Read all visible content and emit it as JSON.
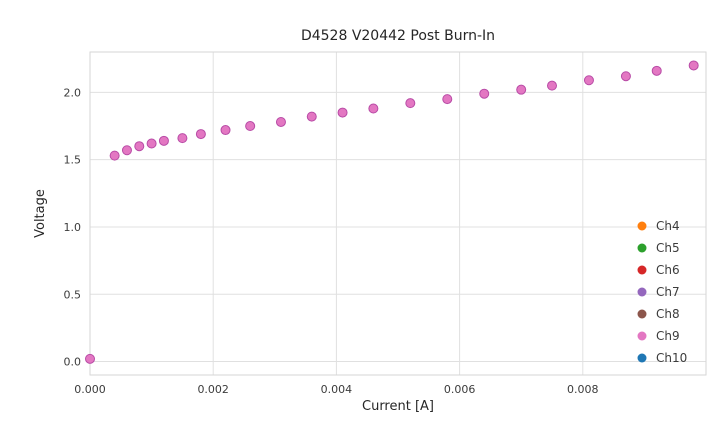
{
  "chart_data": {
    "type": "scatter",
    "title": "D4528 V20442 Post Burn-In",
    "xlabel": "Current [A]",
    "ylabel": "Voltage",
    "xlim": [
      0,
      0.01
    ],
    "ylim": [
      -0.1,
      2.3
    ],
    "x_ticks": [
      0,
      0.002,
      0.004,
      0.006,
      0.008
    ],
    "x_tick_labels": [
      "0.000",
      "0.002",
      "0.004",
      "0.006",
      "0.008"
    ],
    "y_ticks": [
      0,
      0.5,
      1.0,
      1.5,
      2.0
    ],
    "y_tick_labels": [
      "0.0",
      "0.5",
      "1.0",
      "1.5",
      "2.0"
    ],
    "grid": true,
    "legend_position": "lower right",
    "legend": [
      {
        "label": "Ch4",
        "color": "#ff7f0e"
      },
      {
        "label": "Ch5",
        "color": "#2ca02c"
      },
      {
        "label": "Ch6",
        "color": "#d62728"
      },
      {
        "label": "Ch7",
        "color": "#9467bd"
      },
      {
        "label": "Ch8",
        "color": "#8c564b"
      },
      {
        "label": "Ch9",
        "color": "#e377c2"
      },
      {
        "label": "Ch10",
        "color": "#1f77b4"
      }
    ],
    "marker_edge_color": "#b84ba6",
    "series": [
      {
        "name": "Ch9",
        "color": "#e377c2",
        "x": [
          0.0,
          0.0004,
          0.0006,
          0.0008,
          0.001,
          0.0012,
          0.0015,
          0.0018,
          0.0022,
          0.0026,
          0.0031,
          0.0036,
          0.0041,
          0.0046,
          0.0052,
          0.0058,
          0.0064,
          0.007,
          0.0075,
          0.0081,
          0.0087,
          0.0092,
          0.0098
        ],
        "y": [
          0.02,
          1.53,
          1.57,
          1.6,
          1.62,
          1.64,
          1.66,
          1.69,
          1.72,
          1.75,
          1.78,
          1.82,
          1.85,
          1.88,
          1.92,
          1.95,
          1.99,
          2.02,
          2.05,
          2.09,
          2.12,
          2.16,
          2.2
        ]
      }
    ]
  }
}
